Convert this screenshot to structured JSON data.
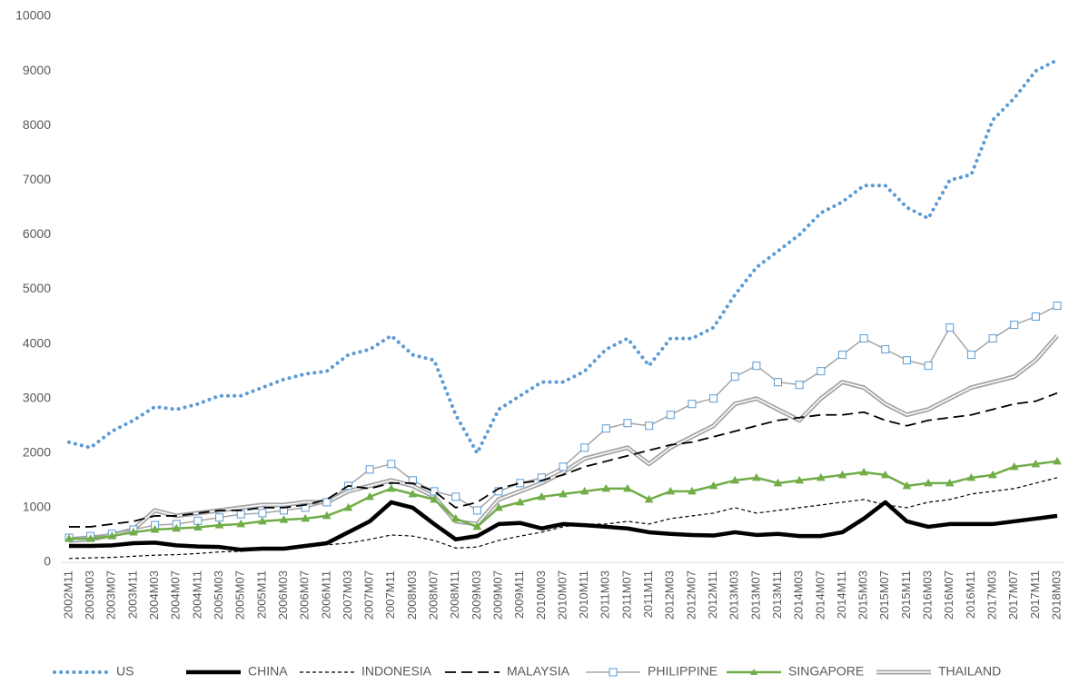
{
  "chart_data": {
    "type": "line",
    "categories": [
      "2002M11",
      "2003M03",
      "2003M07",
      "2003M11",
      "2004M03",
      "2004M07",
      "2004M11",
      "2005M03",
      "2005M07",
      "2005M11",
      "2006M03",
      "2006M07",
      "2006M11",
      "2007M03",
      "2007M07",
      "2007M11",
      "2008M03",
      "2008M07",
      "2008M11",
      "2009M03",
      "2009M07",
      "2009M11",
      "2010M03",
      "2010M07",
      "2010M11",
      "2011M03",
      "2011M07",
      "2011M11",
      "2012M03",
      "2012M07",
      "2012M11",
      "2013M03",
      "2013M07",
      "2013M11",
      "2014M03",
      "2014M07",
      "2014M11",
      "2015M03",
      "2015M07",
      "2015M11",
      "2016M03",
      "2016M07",
      "2016M11",
      "2017M03",
      "2017M07",
      "2017M11",
      "2018M03"
    ],
    "series": [
      {
        "name": "US",
        "color": "#5b9bd5",
        "values": [
          2200,
          2100,
          2400,
          2600,
          2850,
          2800,
          2900,
          3050,
          3050,
          3200,
          3350,
          3450,
          3500,
          3800,
          3900,
          4150,
          3800,
          3700,
          2700,
          2000,
          2800,
          3050,
          3300,
          3300,
          3500,
          3900,
          4100,
          3600,
          4100,
          4100,
          4300,
          4900,
          5400,
          5700,
          6000,
          6400,
          6600,
          6900,
          6900,
          6500,
          6300,
          7000,
          7100,
          8100,
          8500,
          9000,
          9200
        ]
      },
      {
        "name": "CHINA",
        "color": "#000000",
        "values": [
          300,
          300,
          310,
          350,
          360,
          310,
          290,
          280,
          230,
          250,
          250,
          300,
          350,
          550,
          750,
          1100,
          1000,
          700,
          420,
          480,
          700,
          720,
          620,
          700,
          680,
          650,
          620,
          550,
          520,
          500,
          490,
          550,
          500,
          520,
          480,
          480,
          550,
          800,
          1100,
          750,
          650,
          700,
          700,
          700,
          750,
          800,
          850
        ]
      },
      {
        "name": "INDONESIA",
        "color": "#000000",
        "values": [
          70,
          80,
          90,
          110,
          130,
          140,
          160,
          190,
          200,
          230,
          260,
          280,
          320,
          350,
          420,
          500,
          480,
          400,
          260,
          280,
          400,
          480,
          550,
          650,
          700,
          700,
          750,
          700,
          800,
          850,
          900,
          1000,
          900,
          950,
          1000,
          1050,
          1100,
          1150,
          1050,
          1000,
          1100,
          1150,
          1250,
          1300,
          1350,
          1450,
          1550
        ]
      },
      {
        "name": "MALAYSIA",
        "color": "#000000",
        "values": [
          650,
          650,
          700,
          750,
          850,
          850,
          900,
          950,
          950,
          1000,
          1000,
          1050,
          1150,
          1400,
          1350,
          1450,
          1450,
          1300,
          1000,
          1100,
          1350,
          1450,
          1500,
          1600,
          1750,
          1850,
          1950,
          2050,
          2150,
          2200,
          2300,
          2400,
          2500,
          2600,
          2650,
          2700,
          2700,
          2750,
          2600,
          2500,
          2600,
          2650,
          2700,
          2800,
          2900,
          2950,
          3100
        ]
      },
      {
        "name": "PHILIPPINE",
        "color": "#a5a5a5",
        "values": [
          450,
          480,
          520,
          600,
          680,
          700,
          760,
          820,
          880,
          900,
          950,
          1000,
          1100,
          1400,
          1700,
          1800,
          1500,
          1300,
          1200,
          950,
          1300,
          1450,
          1550,
          1750,
          2100,
          2450,
          2550,
          2500,
          2700,
          2900,
          3000,
          3400,
          3600,
          3300,
          3250,
          3500,
          3800,
          4100,
          3900,
          3700,
          3600,
          4300,
          3800,
          4100,
          4350,
          4500,
          4700
        ]
      },
      {
        "name": "SINGAPORE",
        "color": "#70ad47",
        "values": [
          430,
          430,
          480,
          550,
          600,
          620,
          640,
          680,
          700,
          750,
          780,
          800,
          850,
          1000,
          1200,
          1350,
          1250,
          1150,
          800,
          650,
          1000,
          1100,
          1200,
          1250,
          1300,
          1350,
          1350,
          1150,
          1300,
          1300,
          1400,
          1500,
          1550,
          1450,
          1500,
          1550,
          1600,
          1650,
          1600,
          1400,
          1450,
          1450,
          1550,
          1600,
          1750,
          1800,
          1850
        ]
      },
      {
        "name": "THAILAND",
        "color": "#a5a5a5",
        "values": [
          400,
          420,
          500,
          600,
          950,
          850,
          900,
          950,
          1000,
          1050,
          1050,
          1100,
          1100,
          1300,
          1400,
          1500,
          1400,
          1200,
          750,
          700,
          1150,
          1300,
          1450,
          1650,
          1900,
          2000,
          2100,
          1800,
          2100,
          2300,
          2500,
          2900,
          3000,
          2800,
          2600,
          3000,
          3300,
          3200,
          2900,
          2700,
          2800,
          3000,
          3200,
          3300,
          3400,
          3700,
          4150
        ]
      }
    ],
    "ylim": [
      0,
      10000
    ],
    "yticks": [
      0,
      1000,
      2000,
      3000,
      4000,
      5000,
      6000,
      7000,
      8000,
      9000,
      10000
    ],
    "legend": "bottom"
  }
}
